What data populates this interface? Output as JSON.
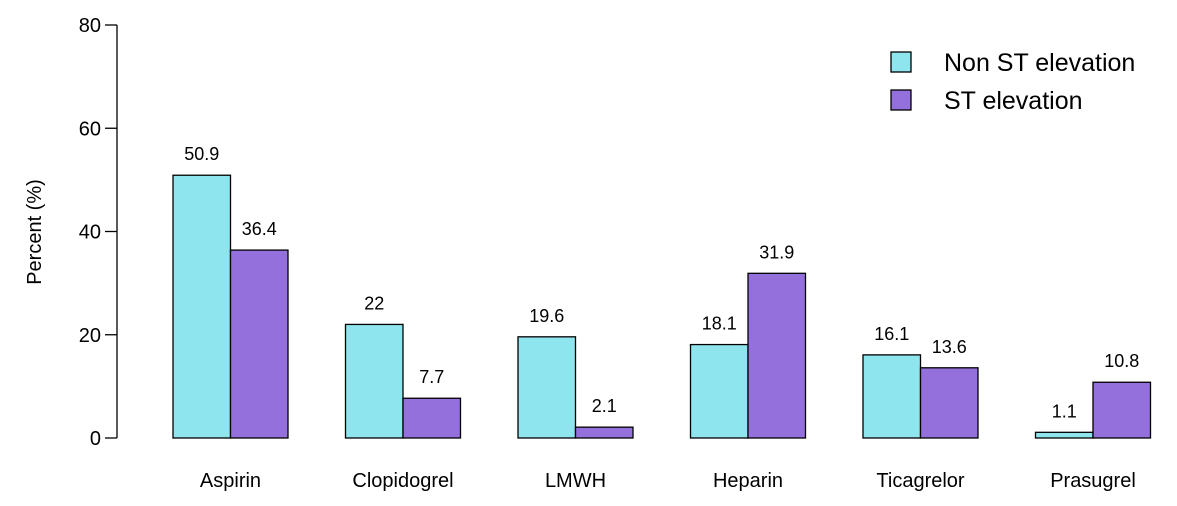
{
  "chart_data": {
    "type": "bar",
    "title": "",
    "xlabel": "",
    "ylabel": "Percent (%)",
    "ylim": [
      0,
      80
    ],
    "yticks": [
      "0",
      "20",
      "40",
      "60",
      "80"
    ],
    "categories": [
      "Aspirin",
      "Clopidogrel",
      "LMWH",
      "Heparin",
      "Ticagrelor",
      "Prasugrel"
    ],
    "series": [
      {
        "name": "Non ST elevation",
        "color": "#8EE5EE",
        "values": [
          50.9,
          22,
          19.6,
          18.1,
          16.1,
          1.1
        ],
        "labels": [
          "50.9",
          "22",
          "19.6",
          "18.1",
          "16.1",
          "1.1"
        ]
      },
      {
        "name": "ST elevation",
        "color": "#9370DB",
        "values": [
          36.4,
          7.7,
          2.1,
          31.9,
          13.6,
          10.8
        ],
        "labels": [
          "36.4",
          "7.7",
          "2.1",
          "31.9",
          "13.6",
          "10.8"
        ]
      }
    ],
    "grid": false,
    "legend": "top-right"
  }
}
